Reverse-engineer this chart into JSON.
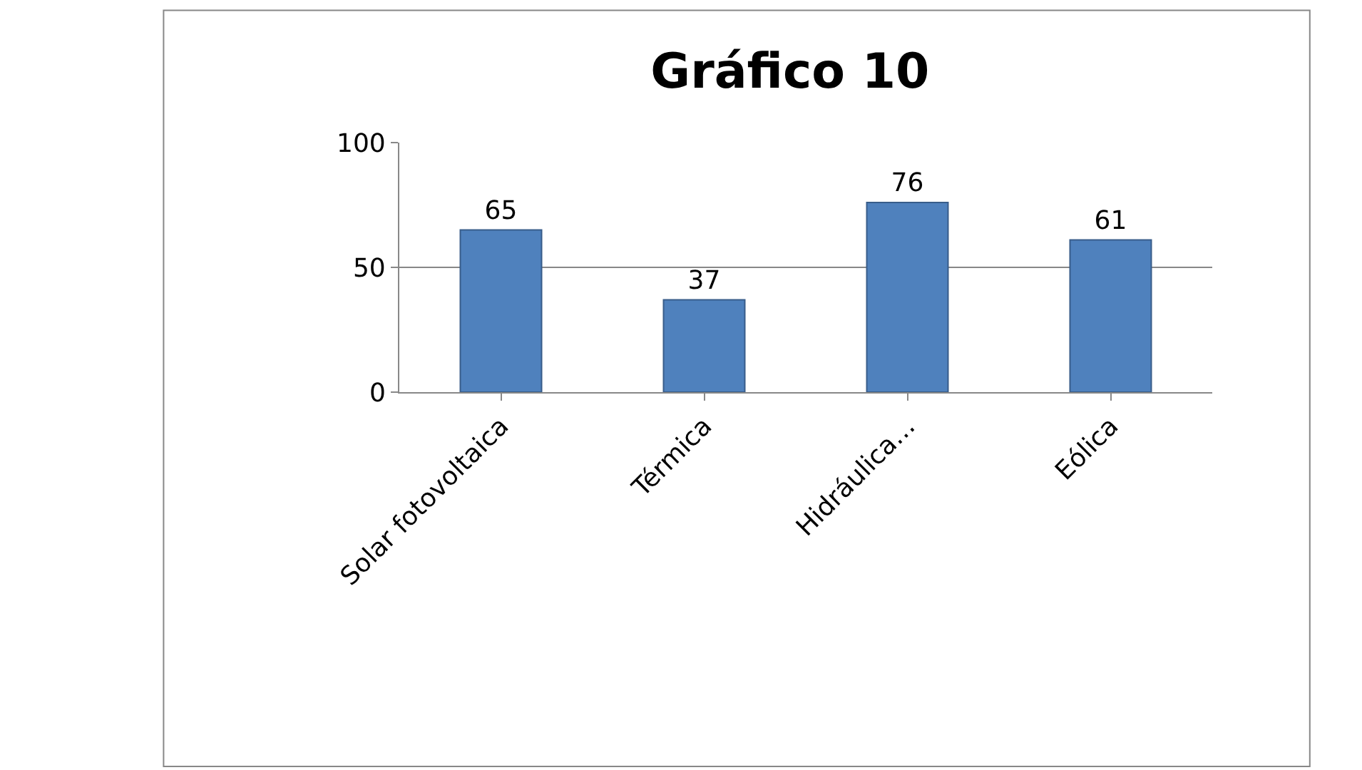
{
  "chart_data": {
    "type": "bar",
    "title": "Gráfico 10",
    "categories": [
      "Solar fotovoltaica",
      "Térmica",
      "Hidráulica…",
      "Eólica"
    ],
    "values": [
      65,
      37,
      76,
      61
    ],
    "color": "#4f81bd",
    "ylim": [
      0,
      100
    ],
    "yticks": [
      0,
      50,
      100
    ],
    "grid": "y",
    "data_labels": true,
    "legend": false
  }
}
